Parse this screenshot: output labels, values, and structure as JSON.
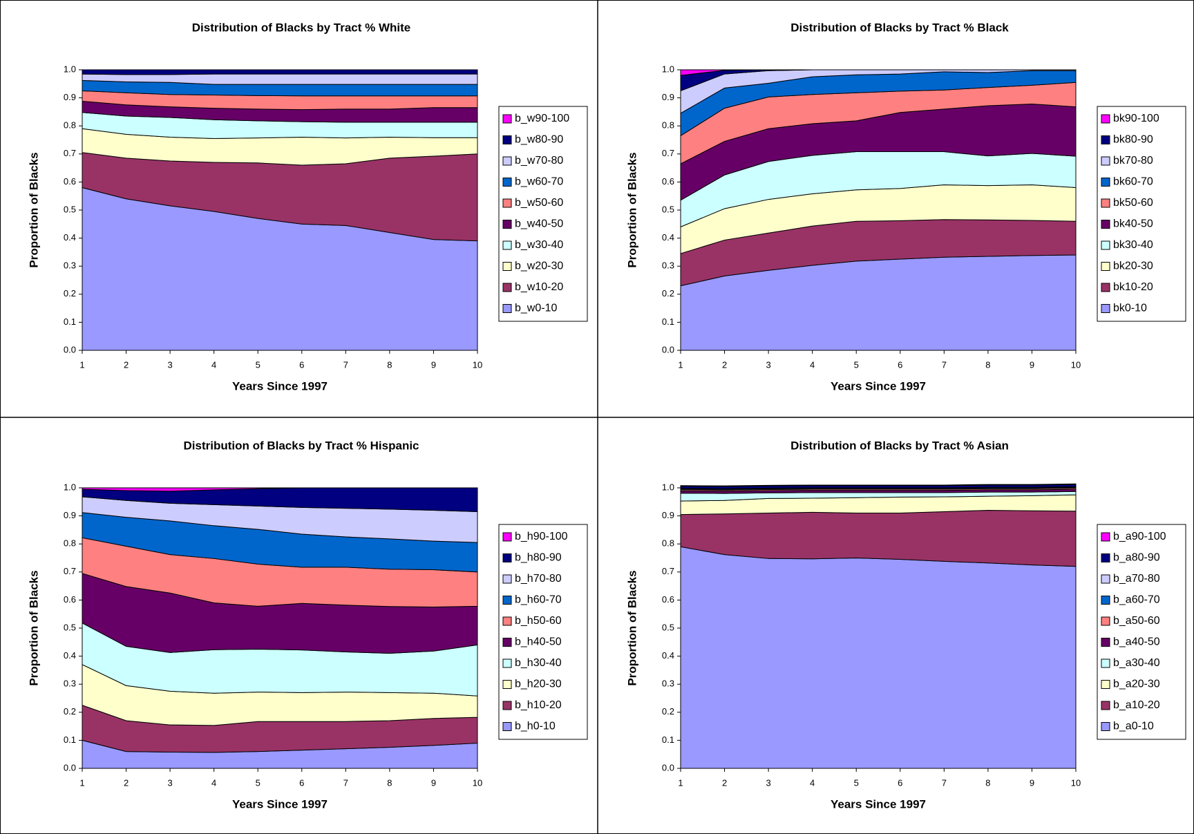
{
  "chart_data": [
    {
      "type": "stacked-area",
      "title": "Distribution of Blacks by Tract % White",
      "x_label": "Years Since 1997",
      "y_label": "Proportion of Blacks",
      "x": [
        1,
        2,
        3,
        4,
        5,
        6,
        7,
        8,
        9,
        10
      ],
      "xlim": [
        1,
        10
      ],
      "xticks": [
        1,
        2,
        3,
        4,
        5,
        6,
        7,
        8,
        9,
        10
      ],
      "ylim": [
        0,
        1
      ],
      "yticks": [
        {
          "value": 0,
          "label": "0.0"
        },
        0.1,
        0.2,
        0.3,
        0.4,
        0.5,
        0.6,
        0.7,
        0.8,
        0.9,
        {
          "value": 1,
          "label": "1.0"
        }
      ],
      "series": [
        {
          "name": "b_w0-10",
          "color": "#9999ff",
          "values": [
            0.58,
            0.54,
            0.515,
            0.495,
            0.47,
            0.45,
            0.445,
            0.42,
            0.395,
            0.39
          ]
        },
        {
          "name": "b_w10-20",
          "color": "#993366",
          "values": [
            0.125,
            0.145,
            0.16,
            0.175,
            0.198,
            0.21,
            0.22,
            0.265,
            0.297,
            0.31
          ]
        },
        {
          "name": "b_w20-30",
          "color": "#ffffcc",
          "values": [
            0.085,
            0.085,
            0.085,
            0.085,
            0.089,
            0.1,
            0.092,
            0.075,
            0.066,
            0.058
          ]
        },
        {
          "name": "b_w30-40",
          "color": "#ccffff",
          "values": [
            0.058,
            0.065,
            0.07,
            0.067,
            0.061,
            0.055,
            0.056,
            0.053,
            0.055,
            0.055
          ]
        },
        {
          "name": "b_w40-50",
          "color": "#660066",
          "values": [
            0.04,
            0.04,
            0.038,
            0.041,
            0.042,
            0.043,
            0.047,
            0.047,
            0.052,
            0.052
          ]
        },
        {
          "name": "b_w50-60",
          "color": "#ff8080",
          "values": [
            0.037,
            0.043,
            0.044,
            0.047,
            0.048,
            0.049,
            0.047,
            0.047,
            0.042,
            0.042
          ]
        },
        {
          "name": "b_w60-70",
          "color": "#0066cc",
          "values": [
            0.037,
            0.039,
            0.043,
            0.038,
            0.04,
            0.041,
            0.041,
            0.041,
            0.041,
            0.041
          ]
        },
        {
          "name": "b_w70-80",
          "color": "#ccccff",
          "values": [
            0.023,
            0.026,
            0.028,
            0.037,
            0.037,
            0.037,
            0.037,
            0.037,
            0.037,
            0.037
          ]
        },
        {
          "name": "b_w80-90",
          "color": "#000080",
          "values": [
            0.015,
            0.017,
            0.017,
            0.015,
            0.015,
            0.015,
            0.015,
            0.015,
            0.015,
            0.015
          ]
        },
        {
          "name": "b_w90-100",
          "color": "#ff00ff",
          "values": [
            0,
            0,
            0,
            0,
            0,
            0,
            0,
            0,
            0,
            0
          ]
        }
      ]
    },
    {
      "type": "stacked-area",
      "title": "Distribution of Blacks by Tract % Black",
      "x_label": "Years Since 1997",
      "y_label": "Proportion of Blacks",
      "x": [
        1,
        2,
        3,
        4,
        5,
        6,
        7,
        8,
        9,
        10
      ],
      "xlim": [
        1,
        10
      ],
      "xticks": [
        1,
        2,
        3,
        4,
        5,
        6,
        7,
        8,
        9,
        10
      ],
      "ylim": [
        0,
        1
      ],
      "yticks": [
        {
          "value": 0,
          "label": "0.0"
        },
        0.1,
        0.2,
        0.3,
        0.4,
        0.5,
        0.6,
        0.7,
        0.8,
        0.9,
        {
          "value": 1,
          "label": "1.0"
        }
      ],
      "series": [
        {
          "name": "bk0-10",
          "color": "#9999ff",
          "values": [
            0.23,
            0.265,
            0.285,
            0.303,
            0.318,
            0.325,
            0.332,
            0.335,
            0.338,
            0.34
          ]
        },
        {
          "name": "bk10-20",
          "color": "#993366",
          "values": [
            0.115,
            0.128,
            0.133,
            0.14,
            0.142,
            0.137,
            0.134,
            0.13,
            0.125,
            0.12
          ]
        },
        {
          "name": "bk20-30",
          "color": "#ffffcc",
          "values": [
            0.095,
            0.112,
            0.12,
            0.115,
            0.112,
            0.115,
            0.124,
            0.122,
            0.127,
            0.12
          ]
        },
        {
          "name": "bk30-40",
          "color": "#ccffff",
          "values": [
            0.095,
            0.12,
            0.135,
            0.137,
            0.136,
            0.131,
            0.118,
            0.106,
            0.112,
            0.112
          ]
        },
        {
          "name": "bk40-50",
          "color": "#660066",
          "values": [
            0.13,
            0.12,
            0.117,
            0.113,
            0.11,
            0.14,
            0.152,
            0.179,
            0.176,
            0.176
          ]
        },
        {
          "name": "bk50-60",
          "color": "#ff8080",
          "values": [
            0.1,
            0.118,
            0.113,
            0.104,
            0.1,
            0.076,
            0.068,
            0.065,
            0.067,
            0.087
          ]
        },
        {
          "name": "bk60-70",
          "color": "#0066cc",
          "values": [
            0.08,
            0.072,
            0.049,
            0.063,
            0.064,
            0.061,
            0.065,
            0.053,
            0.052,
            0.042
          ]
        },
        {
          "name": "bk70-80",
          "color": "#ccccff",
          "values": [
            0.08,
            0.05,
            0.045,
            0.025,
            0.018,
            0.015,
            0.007,
            0.01,
            0.003,
            0.003
          ]
        },
        {
          "name": "bk80-90",
          "color": "#000080",
          "values": [
            0.055,
            0.013,
            0.003,
            0,
            0,
            0,
            0,
            0,
            0,
            0
          ]
        },
        {
          "name": "bk90-100",
          "color": "#ff00ff",
          "values": [
            0.02,
            0.002,
            0,
            0,
            0,
            0,
            0,
            0,
            0,
            0
          ]
        }
      ]
    },
    {
      "type": "stacked-area",
      "title": "Distribution of Blacks by Tract % Hispanic",
      "x_label": "Years Since 1997",
      "y_label": "Proportion of Blacks",
      "x": [
        1,
        2,
        3,
        4,
        5,
        6,
        7,
        8,
        9,
        10
      ],
      "xlim": [
        1,
        10
      ],
      "xticks": [
        1,
        2,
        3,
        4,
        5,
        6,
        7,
        8,
        9,
        10
      ],
      "ylim": [
        0,
        1
      ],
      "yticks": [
        {
          "value": 0,
          "label": "0.0"
        },
        0.1,
        0.2,
        0.3,
        0.4,
        0.5,
        0.6,
        0.7,
        0.8,
        0.9,
        {
          "value": 1,
          "label": "1.0"
        }
      ],
      "series": [
        {
          "name": "b_h0-10",
          "color": "#9999ff",
          "values": [
            0.1,
            0.06,
            0.058,
            0.057,
            0.06,
            0.065,
            0.07,
            0.075,
            0.082,
            0.09
          ]
        },
        {
          "name": "b_h10-20",
          "color": "#993366",
          "values": [
            0.125,
            0.11,
            0.097,
            0.096,
            0.107,
            0.102,
            0.097,
            0.095,
            0.096,
            0.092
          ]
        },
        {
          "name": "b_h20-30",
          "color": "#ffffcc",
          "values": [
            0.145,
            0.125,
            0.12,
            0.115,
            0.105,
            0.103,
            0.105,
            0.1,
            0.09,
            0.076
          ]
        },
        {
          "name": "b_h30-40",
          "color": "#ccffff",
          "values": [
            0.148,
            0.14,
            0.138,
            0.155,
            0.153,
            0.152,
            0.143,
            0.14,
            0.15,
            0.182
          ]
        },
        {
          "name": "b_h40-50",
          "color": "#660066",
          "values": [
            0.177,
            0.213,
            0.212,
            0.167,
            0.153,
            0.166,
            0.167,
            0.167,
            0.157,
            0.138
          ]
        },
        {
          "name": "b_h50-60",
          "color": "#ff8080",
          "values": [
            0.127,
            0.144,
            0.137,
            0.158,
            0.15,
            0.129,
            0.135,
            0.133,
            0.133,
            0.122
          ]
        },
        {
          "name": "b_h60-70",
          "color": "#0066cc",
          "values": [
            0.09,
            0.103,
            0.12,
            0.117,
            0.124,
            0.118,
            0.108,
            0.108,
            0.102,
            0.105
          ]
        },
        {
          "name": "b_h70-80",
          "color": "#ccccff",
          "values": [
            0.056,
            0.06,
            0.063,
            0.075,
            0.083,
            0.095,
            0.102,
            0.106,
            0.11,
            0.11
          ]
        },
        {
          "name": "b_h80-90",
          "color": "#000080",
          "values": [
            0.027,
            0.035,
            0.043,
            0.053,
            0.062,
            0.07,
            0.073,
            0.076,
            0.08,
            0.085
          ]
        },
        {
          "name": "b_h90-100",
          "color": "#ff00ff",
          "values": [
            0.005,
            0.01,
            0.012,
            0.007,
            0.003,
            0,
            0,
            0,
            0,
            0
          ]
        }
      ]
    },
    {
      "type": "stacked-area",
      "title": "Distribution of Blacks by Tract % Asian",
      "x_label": "Years Since 1997",
      "y_label": "Proportion of Blacks",
      "x": [
        1,
        2,
        3,
        4,
        5,
        6,
        7,
        8,
        9,
        10
      ],
      "xlim": [
        1,
        10
      ],
      "xticks": [
        1,
        2,
        3,
        4,
        5,
        6,
        7,
        8,
        9,
        10
      ],
      "ylim": [
        0,
        1
      ],
      "yticks": [
        {
          "value": 0,
          "label": "0.0"
        },
        0.1,
        0.2,
        0.3,
        0.4,
        0.5,
        0.6,
        0.7,
        0.8,
        0.9,
        {
          "value": 1,
          "label": "1.0"
        }
      ],
      "series": [
        {
          "name": "b_a0-10",
          "color": "#9999ff",
          "values": [
            0.79,
            0.762,
            0.748,
            0.747,
            0.75,
            0.745,
            0.738,
            0.732,
            0.725,
            0.72
          ]
        },
        {
          "name": "b_a10-20",
          "color": "#993366",
          "values": [
            0.115,
            0.145,
            0.162,
            0.166,
            0.16,
            0.165,
            0.177,
            0.188,
            0.193,
            0.197
          ]
        },
        {
          "name": "b_a20-30",
          "color": "#ffffcc",
          "values": [
            0.048,
            0.048,
            0.052,
            0.05,
            0.055,
            0.057,
            0.053,
            0.05,
            0.054,
            0.058
          ]
        },
        {
          "name": "b_a30-40",
          "color": "#ccffff",
          "values": [
            0.028,
            0.025,
            0.02,
            0.02,
            0.018,
            0.016,
            0.015,
            0.015,
            0.013,
            0.012
          ]
        },
        {
          "name": "b_a40-50",
          "color": "#660066",
          "values": [
            0.008,
            0.008,
            0.008,
            0.008,
            0.008,
            0.008,
            0.008,
            0.008,
            0.008,
            0.008
          ]
        },
        {
          "name": "b_a50-60",
          "color": "#ff8080",
          "values": [
            0.004,
            0.004,
            0.004,
            0.004,
            0.004,
            0.004,
            0.004,
            0.004,
            0.004,
            0.004
          ]
        },
        {
          "name": "b_a60-70",
          "color": "#0066cc",
          "values": [
            0.003,
            0.003,
            0.003,
            0.003,
            0.003,
            0.003,
            0.003,
            0.003,
            0.003,
            0.003
          ]
        },
        {
          "name": "b_a70-80",
          "color": "#ccccff",
          "values": [
            0.002,
            0.002,
            0.002,
            0.002,
            0.002,
            0.002,
            0.002,
            0.002,
            0.002,
            0.002
          ]
        },
        {
          "name": "b_a80-90",
          "color": "#000080",
          "values": [
            0.008,
            0.008,
            0.008,
            0.008,
            0.008,
            0.008,
            0.008,
            0.008,
            0.008,
            0.008
          ]
        },
        {
          "name": "b_a90-100",
          "color": "#ff00ff",
          "values": [
            0.002,
            0.002,
            0.002,
            0.002,
            0.002,
            0.002,
            0.002,
            0.002,
            0.002,
            0.002
          ]
        }
      ]
    }
  ]
}
